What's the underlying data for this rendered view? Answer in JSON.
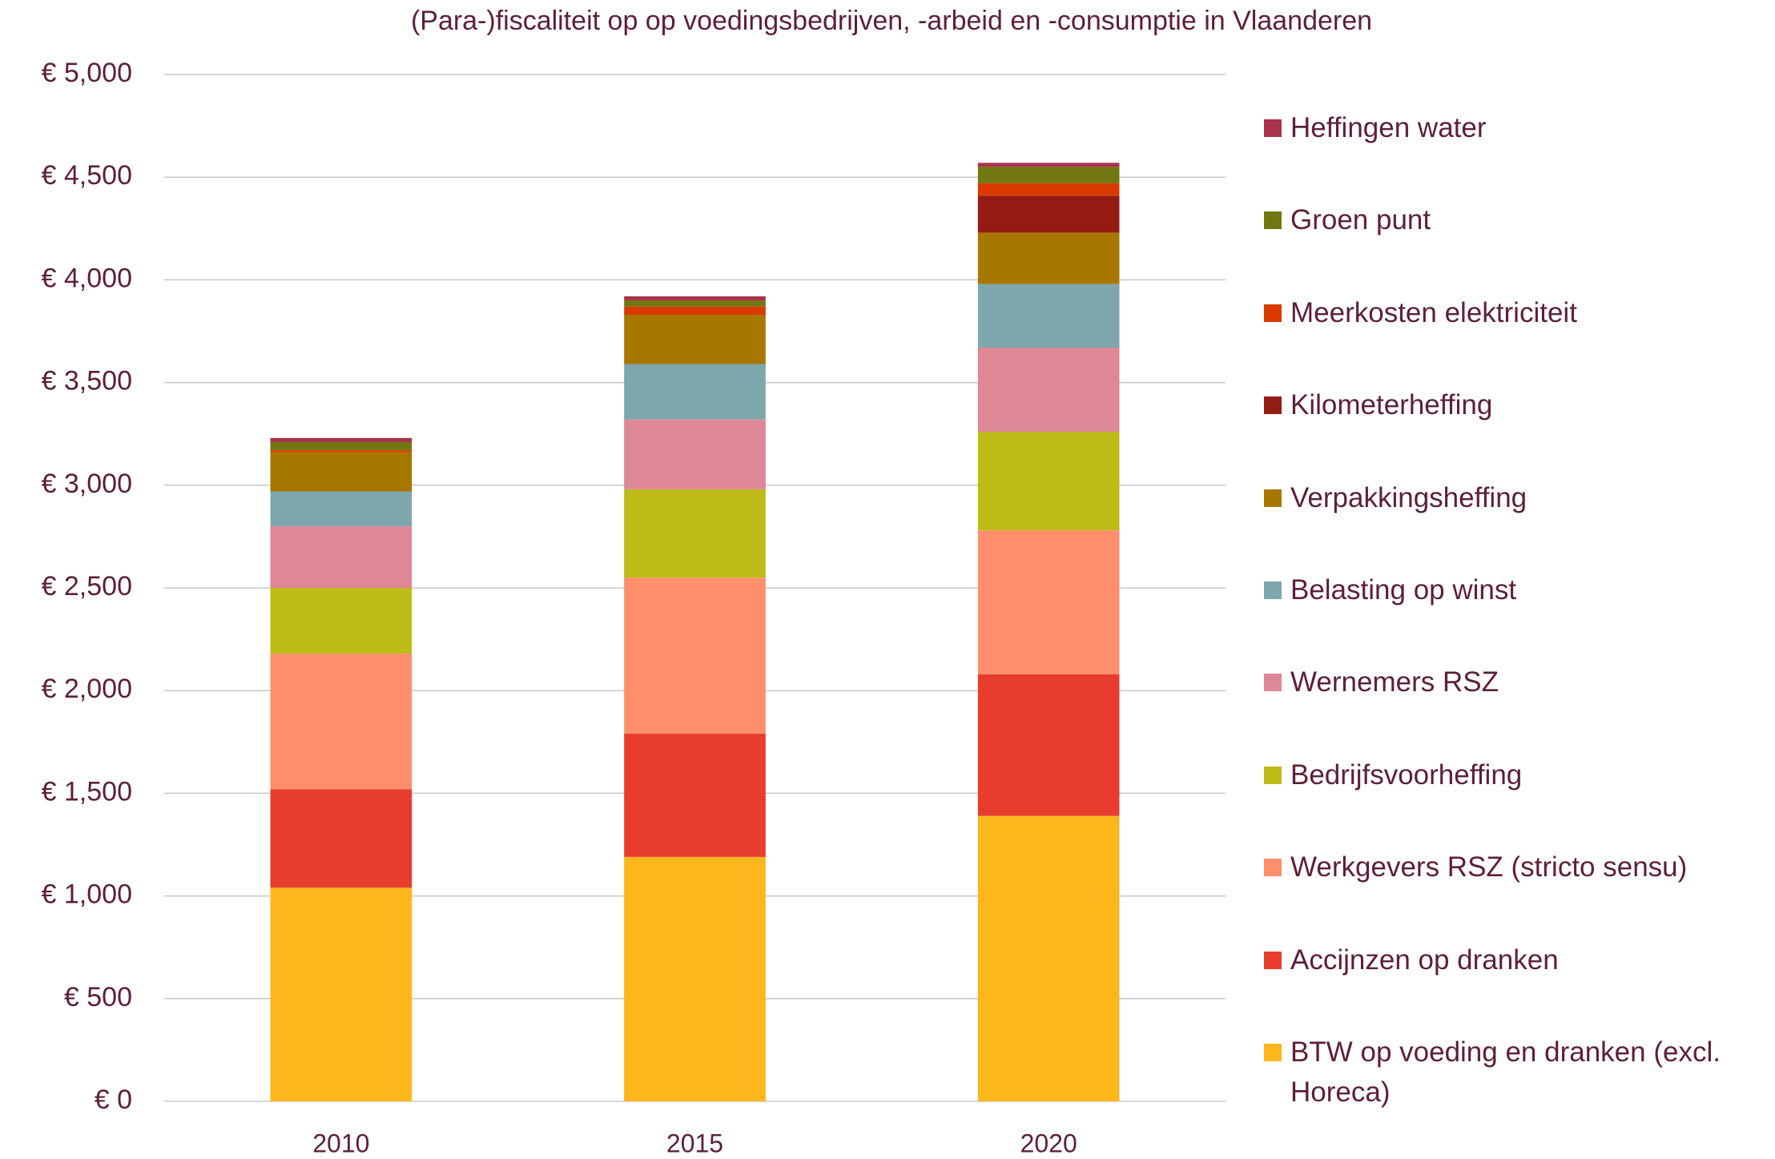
{
  "chart_data": {
    "type": "stacked_bar",
    "title": "(Para-)fiscaliteit op op voedingsbedrijven, -arbeid en -consumptie in Vlaanderen",
    "categories": [
      "2010",
      "2015",
      "2020"
    ],
    "series": [
      {
        "name": "BTW op voeding en dranken (excl. Horeca)",
        "color": "#fdb71c",
        "values": [
          1040,
          1190,
          1390
        ]
      },
      {
        "name": "Accijnzen op dranken",
        "color": "#e63d2f",
        "values": [
          480,
          600,
          690
        ]
      },
      {
        "name": "Werkgevers RSZ (stricto sensu)",
        "color": "#ff8f6c",
        "values": [
          660,
          760,
          700
        ]
      },
      {
        "name": "Bedrijfsvoorheffing",
        "color": "#bcbb18",
        "values": [
          320,
          430,
          480
        ]
      },
      {
        "name": "Wernemers RSZ",
        "color": "#de8796",
        "values": [
          300,
          340,
          410
        ]
      },
      {
        "name": "Belasting op winst",
        "color": "#7ea7ad",
        "values": [
          170,
          270,
          310
        ]
      },
      {
        "name": "Verpakkingsheffing",
        "color": "#a87700",
        "values": [
          190,
          240,
          250
        ]
      },
      {
        "name": "Kilometerheffing",
        "color": "#941b14",
        "values": [
          0,
          0,
          180
        ]
      },
      {
        "name": "Meerkosten elektriciteit",
        "color": "#d93a00",
        "values": [
          10,
          40,
          60
        ]
      },
      {
        "name": "Groen punt",
        "color": "#727711",
        "values": [
          40,
          30,
          80
        ]
      },
      {
        "name": "Heffingen water",
        "color": "#a8334a",
        "values": [
          20,
          20,
          20
        ]
      }
    ],
    "ylim": [
      0,
      5000
    ],
    "yticks": [
      {
        "value": 0,
        "label": "€ 0"
      },
      {
        "value": 500,
        "label": "€ 500"
      },
      {
        "value": 1000,
        "label": "€ 1,000"
      },
      {
        "value": 1500,
        "label": "€ 1,500"
      },
      {
        "value": 2000,
        "label": "€ 2,000"
      },
      {
        "value": 2500,
        "label": "€ 2,500"
      },
      {
        "value": 3000,
        "label": "€ 3,000"
      },
      {
        "value": 3500,
        "label": "€ 3,500"
      },
      {
        "value": 4000,
        "label": "€ 4,000"
      },
      {
        "value": 4500,
        "label": "€ 4,500"
      },
      {
        "value": 5000,
        "label": "€ 5,000"
      }
    ],
    "grid": true,
    "legend": "right"
  }
}
